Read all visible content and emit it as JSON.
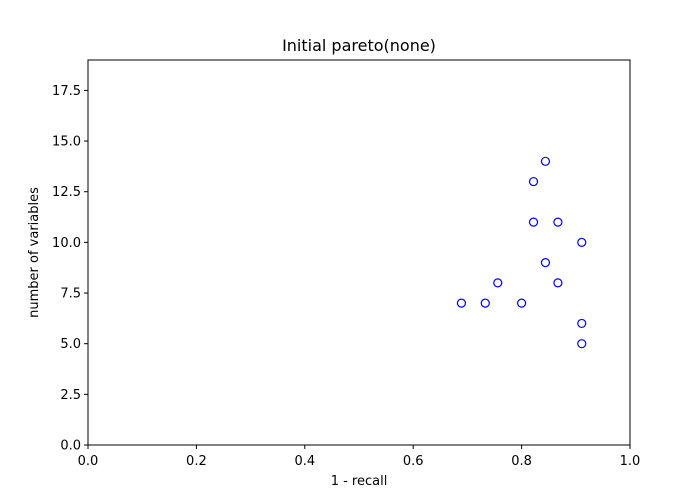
{
  "chart_data": {
    "type": "scatter",
    "title": "Initial pareto(none)",
    "xlabel": "1 - recall",
    "ylabel": "number of variables",
    "xlim": [
      0.0,
      1.0
    ],
    "ylim": [
      0.0,
      19.0
    ],
    "x_ticks": [
      0.0,
      0.2,
      0.4,
      0.6,
      0.8,
      1.0
    ],
    "x_tick_labels": [
      "0.0",
      "0.2",
      "0.4",
      "0.6",
      "0.8",
      "1.0"
    ],
    "y_ticks": [
      0.0,
      2.5,
      5.0,
      7.5,
      10.0,
      12.5,
      15.0,
      17.5
    ],
    "y_tick_labels": [
      "0.0",
      "2.5",
      "5.0",
      "7.5",
      "10.0",
      "12.5",
      "15.0",
      "17.5"
    ],
    "grid": false,
    "marker": "hollow-circle",
    "color": "#0000ff",
    "series": [
      {
        "points": [
          {
            "x": 0.689,
            "y": 7
          },
          {
            "x": 0.733,
            "y": 7
          },
          {
            "x": 0.756,
            "y": 8
          },
          {
            "x": 0.8,
            "y": 7
          },
          {
            "x": 0.822,
            "y": 13
          },
          {
            "x": 0.822,
            "y": 11
          },
          {
            "x": 0.844,
            "y": 14
          },
          {
            "x": 0.844,
            "y": 9
          },
          {
            "x": 0.867,
            "y": 11
          },
          {
            "x": 0.867,
            "y": 8
          },
          {
            "x": 0.911,
            "y": 10
          },
          {
            "x": 0.911,
            "y": 6
          },
          {
            "x": 0.911,
            "y": 5
          }
        ]
      }
    ]
  }
}
